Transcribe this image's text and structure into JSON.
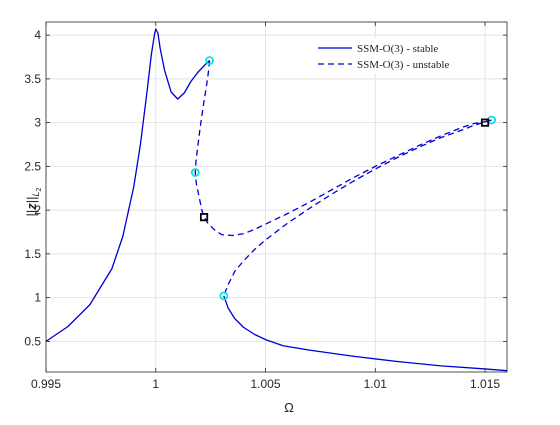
{
  "chart_data": {
    "type": "line",
    "title": "",
    "xlabel": "Ω",
    "ylabel": "||z||_{L2}",
    "xlim": [
      0.995,
      1.016
    ],
    "ylim": [
      0.15,
      4.15
    ],
    "x_ticks": [
      0.995,
      1.0,
      1.005,
      1.01,
      1.015
    ],
    "x_tick_labels": [
      "0.995",
      "1",
      "1.005",
      "1.01",
      "1.015"
    ],
    "y_ticks": [
      0.5,
      1.0,
      1.5,
      2.0,
      2.5,
      3.0,
      3.5,
      4.0
    ],
    "y_tick_labels": [
      "0.5",
      "1",
      "1.5",
      "2",
      "2.5",
      "3",
      "3.5",
      "4"
    ],
    "grid": true,
    "legend_placement": "top-right",
    "colors": {
      "curve": "#0000d4",
      "special_point_cyan": "#00e5e5",
      "special_point_black": "#000000",
      "grid": "#e3e3e3",
      "axis": "#262626"
    },
    "series": [
      {
        "name": "SSM-O(3) - stable",
        "style": "solid",
        "segments": [
          {
            "x": [
              0.995,
              0.996,
              0.997,
              0.998,
              0.9985,
              0.999,
              0.9993,
              0.9996,
              0.9998,
              0.99995,
              1.0,
              1.0001,
              1.0002,
              1.0004,
              1.0007,
              1.001,
              1.0013,
              1.0016,
              1.0019,
              1.0022,
              1.00245
            ],
            "y": [
              0.5,
              0.67,
              0.92,
              1.33,
              1.7,
              2.27,
              2.75,
              3.35,
              3.78,
              4.02,
              4.07,
              4.02,
              3.85,
              3.6,
              3.35,
              3.27,
              3.34,
              3.47,
              3.57,
              3.65,
              3.71
            ]
          },
          {
            "x": [
              1.0031,
              1.0033,
              1.0036,
              1.004,
              1.0045,
              1.005,
              1.0058,
              1.007,
              1.009,
              1.011,
              1.013,
              1.015,
              1.016
            ],
            "y": [
              1.02,
              0.88,
              0.76,
              0.66,
              0.58,
              0.52,
              0.45,
              0.4,
              0.33,
              0.27,
              0.22,
              0.185,
              0.165
            ]
          }
        ]
      },
      {
        "name": "SSM-O(3) - unstable",
        "style": "dashed",
        "segments": [
          {
            "x": [
              1.00245,
              1.0024,
              1.0023,
              1.0022,
              1.0021,
              1.002,
              1.0019,
              1.00183,
              1.0018,
              1.00185,
              1.00195,
              1.0021,
              1.0022,
              1.0024,
              1.0027,
              1.003,
              1.0035,
              1.004,
              1.0045,
              1.005,
              1.006,
              1.007,
              1.008,
              1.009,
              1.01,
              1.011,
              1.012,
              1.013,
              1.014,
              1.0145,
              1.015,
              1.0153
            ],
            "y": [
              3.71,
              3.58,
              3.4,
              3.25,
              3.08,
              2.9,
              2.7,
              2.55,
              2.43,
              2.3,
              2.18,
              2.0,
              1.92,
              1.84,
              1.77,
              1.72,
              1.71,
              1.73,
              1.78,
              1.84,
              1.96,
              2.09,
              2.23,
              2.37,
              2.5,
              2.62,
              2.74,
              2.85,
              2.95,
              2.99,
              3.01,
              3.03
            ]
          },
          {
            "x": [
              1.0153,
              1.0145,
              1.014,
              1.013,
              1.012,
              1.011,
              1.01,
              1.009,
              1.008,
              1.007,
              1.006,
              1.005,
              1.0045,
              1.004,
              1.0036,
              1.0033,
              1.0031
            ],
            "y": [
              3.03,
              2.97,
              2.92,
              2.83,
              2.72,
              2.6,
              2.47,
              2.33,
              2.18,
              2.02,
              1.85,
              1.66,
              1.55,
              1.42,
              1.3,
              1.15,
              1.02
            ]
          }
        ]
      }
    ],
    "special_points": {
      "cyan": [
        {
          "x": 1.00245,
          "y": 3.71
        },
        {
          "x": 1.0018,
          "y": 2.43
        },
        {
          "x": 1.0031,
          "y": 1.02
        },
        {
          "x": 1.0153,
          "y": 3.03
        }
      ],
      "black": [
        {
          "x": 1.0022,
          "y": 1.92
        },
        {
          "x": 1.015,
          "y": 3.0
        }
      ]
    }
  }
}
